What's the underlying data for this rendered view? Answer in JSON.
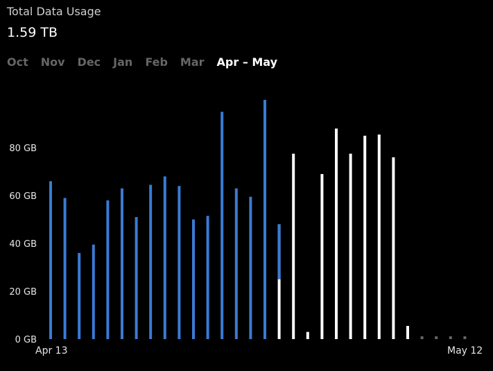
{
  "header": {
    "title": "Total Data Usage",
    "total": "1.59 TB"
  },
  "tabs": [
    {
      "label": "Oct",
      "active": false
    },
    {
      "label": "Nov",
      "active": false
    },
    {
      "label": "Dec",
      "active": false
    },
    {
      "label": "Jan",
      "active": false
    },
    {
      "label": "Feb",
      "active": false
    },
    {
      "label": "Mar",
      "active": false
    },
    {
      "label": "Apr – May",
      "active": true
    }
  ],
  "colors": {
    "actual": "#3a7bd5",
    "projected": "#ffffff",
    "empty": "#666666",
    "background": "#000000"
  },
  "chart_data": {
    "type": "bar",
    "ylim": [
      0,
      100
    ],
    "yticks": [
      0,
      20,
      40,
      60,
      80
    ],
    "ytick_labels": [
      "0 GB",
      "20 GB",
      "40 GB",
      "60 GB",
      "80 GB"
    ],
    "x_start_label": "Apr 13",
    "x_end_label": "May 12",
    "unit": "GB",
    "series": [
      {
        "values": [
          66,
          59,
          36,
          39.5,
          58,
          63,
          51,
          64.5,
          68,
          64,
          50,
          51.5,
          95,
          63,
          59.5,
          100,
          48,
          77.5,
          3,
          69,
          88,
          77.5,
          85,
          85.5,
          76,
          5.5,
          1,
          1,
          1,
          1
        ],
        "actual_portion": [
          66,
          59,
          36,
          39.5,
          58,
          63,
          51,
          64.5,
          68,
          64,
          50,
          51.5,
          95,
          63,
          59.5,
          100,
          23,
          0,
          0,
          0,
          0,
          0,
          0,
          0,
          0,
          0,
          0,
          0,
          0,
          0
        ],
        "empty": [
          false,
          false,
          false,
          false,
          false,
          false,
          false,
          false,
          false,
          false,
          false,
          false,
          false,
          false,
          false,
          false,
          false,
          false,
          false,
          false,
          false,
          false,
          false,
          false,
          false,
          false,
          true,
          true,
          true,
          true
        ]
      }
    ]
  }
}
